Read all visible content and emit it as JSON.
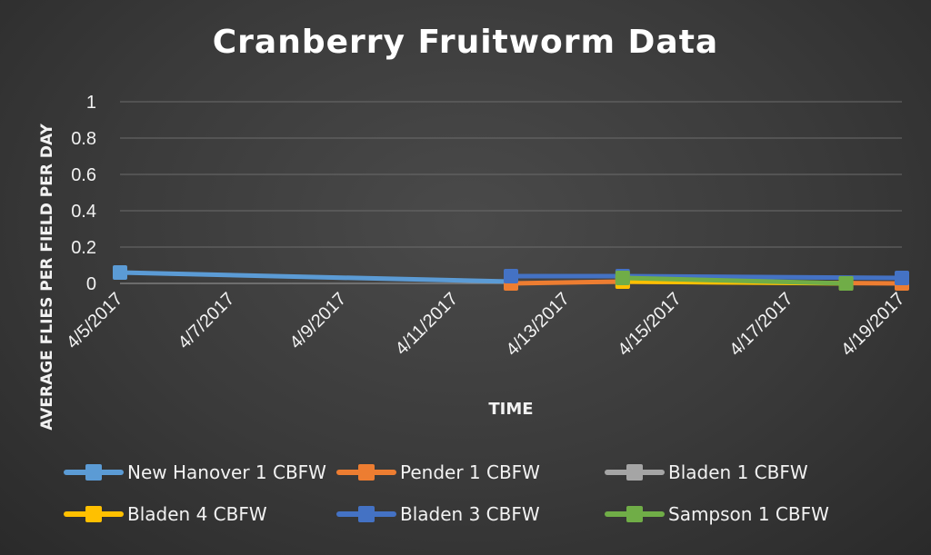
{
  "chart_data": {
    "type": "line",
    "title": "Cranberry Fruitworm Data",
    "xlabel": "TIME",
    "ylabel": "AVERAGE FLIES PER FIELD PER DAY",
    "ylim": [
      0,
      1
    ],
    "y_ticks": [
      "0",
      "0.2",
      "0.4",
      "0.6",
      "0.8",
      "1"
    ],
    "x_ticks": [
      "4/5/2017",
      "4/7/2017",
      "4/9/2017",
      "4/11/2017",
      "4/13/2017",
      "4/15/2017",
      "4/17/2017",
      "4/19/2017"
    ],
    "x_range": [
      "4/5/2017",
      "4/19/2017"
    ],
    "grid": true,
    "legend_position": "bottom",
    "series": [
      {
        "name": "New Hanover 1 CBFW",
        "color": "#5b9bd5",
        "points": [
          [
            "4/5/2017",
            0.06
          ],
          [
            "4/12/2017",
            0.01
          ]
        ]
      },
      {
        "name": "Pender 1 CBFW",
        "color": "#ed7d31",
        "points": [
          [
            "4/12/2017",
            0.0
          ],
          [
            "4/14/2017",
            0.01
          ],
          [
            "4/19/2017",
            0.0
          ]
        ]
      },
      {
        "name": "Bladen 1 CBFW",
        "color": "#a5a5a5",
        "points": []
      },
      {
        "name": "Bladen 4 CBFW",
        "color": "#ffc000",
        "points": [
          [
            "4/14/2017",
            0.01
          ],
          [
            "4/18/2017",
            0.0
          ]
        ]
      },
      {
        "name": "Bladen 3 CBFW",
        "color": "#4472c4",
        "points": [
          [
            "4/12/2017",
            0.04
          ],
          [
            "4/14/2017",
            0.04
          ],
          [
            "4/19/2017",
            0.03
          ]
        ]
      },
      {
        "name": "Sampson 1 CBFW",
        "color": "#70ad47",
        "points": [
          [
            "4/14/2017",
            0.03
          ],
          [
            "4/18/2017",
            0.0
          ]
        ]
      }
    ]
  }
}
